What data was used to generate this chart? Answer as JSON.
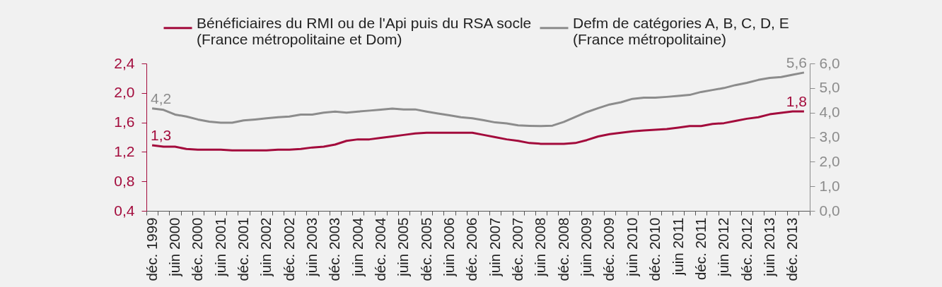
{
  "chart_data": {
    "type": "line",
    "categories": [
      "déc. 1999",
      null,
      "juin 2000",
      null,
      "déc. 2000",
      null,
      "juin 2001",
      null,
      "déc. 2001",
      null,
      "juin 2002",
      null,
      "déc. 2002",
      null,
      "juin 2003",
      null,
      "déc. 2003",
      null,
      "juin 2004",
      null,
      "déc. 2004",
      null,
      "juin 2005",
      null,
      "déc. 2005",
      null,
      "juin 2006",
      null,
      "déc. 2006",
      null,
      "juin 2007",
      null,
      "déc. 2007",
      null,
      "juin 2008",
      null,
      "déc. 2008",
      null,
      "juin 2009",
      null,
      "déc. 2009",
      null,
      "juin 2010",
      null,
      "déc. 2010",
      null,
      "juin 2011",
      null,
      "déc. 2011",
      null,
      "juin 2012",
      null,
      "déc. 2012",
      null,
      "juin 2013",
      null,
      "déc. 2013",
      null
    ],
    "series": [
      {
        "name": "Bénéficiaires du RMI ou de l'Api puis du RSA socle\n(France métropolitaine et Dom)",
        "color": "#a30b3c",
        "values": [
          1.29,
          1.27,
          1.27,
          1.24,
          1.23,
          1.23,
          1.23,
          1.22,
          1.22,
          1.22,
          1.22,
          1.23,
          1.23,
          1.24,
          1.26,
          1.27,
          1.3,
          1.35,
          1.37,
          1.37,
          1.39,
          1.41,
          1.43,
          1.45,
          1.46,
          1.46,
          1.46,
          1.46,
          1.46,
          1.43,
          1.4,
          1.37,
          1.35,
          1.32,
          1.31,
          1.31,
          1.31,
          1.32,
          1.36,
          1.41,
          1.44,
          1.46,
          1.48,
          1.49,
          1.5,
          1.51,
          1.53,
          1.55,
          1.55,
          1.58,
          1.59,
          1.62,
          1.65,
          1.67,
          1.71,
          1.73,
          1.75,
          1.75
        ],
        "value_labels": [
          "1,3",
          null,
          null,
          null,
          null,
          null,
          null,
          null,
          null,
          null,
          null,
          null,
          null,
          null,
          null,
          null,
          null,
          null,
          null,
          null,
          null,
          null,
          null,
          null,
          null,
          null,
          null,
          null,
          null,
          null,
          null,
          null,
          null,
          null,
          null,
          null,
          null,
          null,
          null,
          null,
          null,
          null,
          null,
          null,
          null,
          null,
          null,
          null,
          null,
          null,
          null,
          null,
          null,
          null,
          null,
          null,
          null,
          "1,8"
        ]
      },
      {
        "name": "Defm de catégories A, B, C, D, E\n(France métropolitaine)",
        "color": "#8c8c8c",
        "axis": "y2",
        "values": [
          4.17,
          4.11,
          3.92,
          3.84,
          3.72,
          3.63,
          3.59,
          3.59,
          3.68,
          3.72,
          3.77,
          3.81,
          3.84,
          3.92,
          3.92,
          4.0,
          4.04,
          4.0,
          4.04,
          4.08,
          4.12,
          4.16,
          4.13,
          4.13,
          4.04,
          3.96,
          3.89,
          3.81,
          3.77,
          3.69,
          3.6,
          3.56,
          3.48,
          3.46,
          3.45,
          3.47,
          3.62,
          3.82,
          4.02,
          4.18,
          4.33,
          4.42,
          4.56,
          4.61,
          4.61,
          4.64,
          4.68,
          4.72,
          4.84,
          4.92,
          5.0,
          5.12,
          5.21,
          5.33,
          5.41,
          5.45,
          5.54,
          5.63
        ],
        "value_labels": [
          "4,2",
          null,
          null,
          null,
          null,
          null,
          null,
          null,
          null,
          null,
          null,
          null,
          null,
          null,
          null,
          null,
          null,
          null,
          null,
          null,
          null,
          null,
          null,
          null,
          null,
          null,
          null,
          null,
          null,
          null,
          null,
          null,
          null,
          null,
          null,
          null,
          null,
          null,
          null,
          null,
          null,
          null,
          null,
          null,
          null,
          null,
          null,
          null,
          null,
          null,
          null,
          null,
          null,
          null,
          null,
          null,
          null,
          "5,6"
        ]
      }
    ],
    "ylim": [
      0.4,
      2.4
    ],
    "yticks": [
      {
        "value": 0.4,
        "label": "0,4"
      },
      {
        "value": 0.8,
        "label": "0,8"
      },
      {
        "value": 1.2,
        "label": "1,2"
      },
      {
        "value": 1.6,
        "label": "1,6"
      },
      {
        "value": 2.0,
        "label": "2,0"
      },
      {
        "value": 2.4,
        "label": "2,4"
      }
    ],
    "y2lim": [
      0,
      6
    ],
    "y2ticks": [
      {
        "value": 0,
        "label": "0,0"
      },
      {
        "value": 1,
        "label": "1,0"
      },
      {
        "value": 2,
        "label": "2,0"
      },
      {
        "value": 3,
        "label": "3,0"
      },
      {
        "value": 4,
        "label": "4,0"
      },
      {
        "value": 5,
        "label": "5,0"
      },
      {
        "value": 6,
        "label": "6,0"
      }
    ],
    "legend": "top",
    "grid": false
  }
}
